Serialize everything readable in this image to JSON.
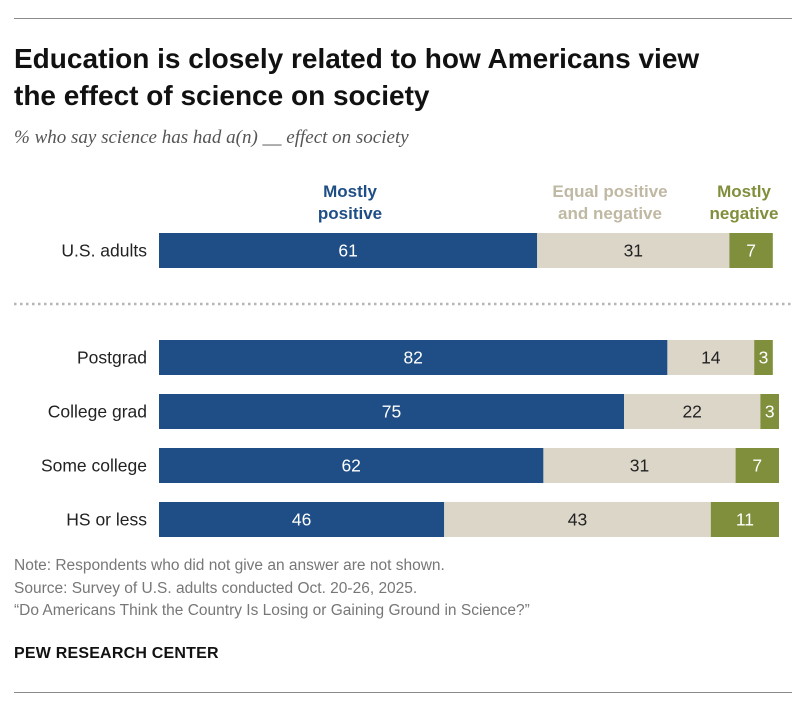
{
  "title_lines": [
    "Education is closely related to how Americans view",
    "the effect of science on society"
  ],
  "subtitle": "% who say science has had a(n) __ effect on society",
  "colors": {
    "positive": "#1f4e86",
    "equal": "#dcd6c9",
    "negative": "#7f8f3c",
    "equal_label": "#bfb8a3",
    "negative_label": "#7f8f3c"
  },
  "chart_data": {
    "type": "bar",
    "orientation": "horizontal",
    "stacked": true,
    "categories": [
      "U.S. adults",
      "Postgrad",
      "College grad",
      "Some college",
      "HS or less"
    ],
    "series": [
      {
        "name": "Mostly positive",
        "legend_lines": [
          "Mostly",
          "positive"
        ],
        "values": [
          61,
          82,
          75,
          62,
          46
        ]
      },
      {
        "name": "Equal positive and negative",
        "legend_lines": [
          "Equal positive",
          "and negative"
        ],
        "values": [
          31,
          14,
          22,
          31,
          43
        ]
      },
      {
        "name": "Mostly negative",
        "legend_lines": [
          "Mostly",
          "negative"
        ],
        "values": [
          7,
          3,
          3,
          7,
          11
        ]
      }
    ],
    "xlim": [
      0,
      100
    ]
  },
  "notes": [
    "Note: Respondents who did not give an answer are not shown.",
    "Source: Survey of U.S. adults conducted Oct. 20-26, 2025.",
    "“Do Americans Think the Country Is Losing or Gaining Ground in Science?”"
  ],
  "brand": "PEW RESEARCH CENTER"
}
